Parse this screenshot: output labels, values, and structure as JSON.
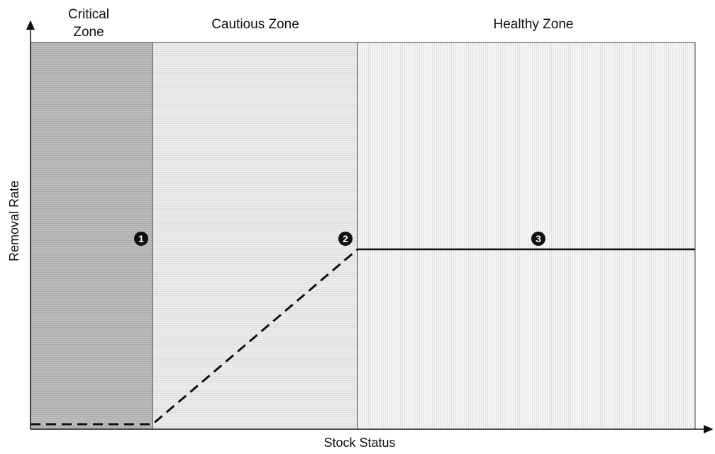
{
  "zones": [
    {
      "label_lines": [
        "Critical",
        "Zone"
      ]
    },
    {
      "label_lines": [
        "Cautious Zone"
      ]
    },
    {
      "label_lines": [
        "Healthy Zone"
      ]
    }
  ],
  "axes": {
    "y_label": "Removal Rate",
    "x_label": "Stock Status"
  },
  "markers": [
    {
      "label": "1"
    },
    {
      "label": "2"
    },
    {
      "label": "3"
    }
  ]
}
